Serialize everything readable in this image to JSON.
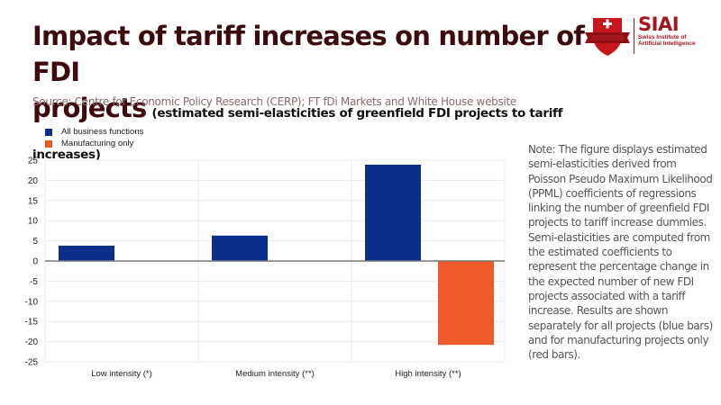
{
  "header": {
    "title": "Impact of tariff increases on number of FDI projects",
    "title_line1": "Impact of tariff increases on number of FDI",
    "title_line2": "projects",
    "subtitle": "(estimated semi-elasticities of greenfield FDI projects to tariff increases)",
    "source": "Source: Centre for Economic Policy Research (CERP); FT fDi Markets and White House website"
  },
  "logo": {
    "name": "SIAI",
    "line1": "Swiss Institute of",
    "line2": "Artificial Intelligence",
    "color": "#a3161c"
  },
  "note": "Note: The figure displays estimated semi-elasticities derived from Poisson Pseudo Maximum Likelihood (PPML) coefficients of regressions linking the number of greenfield FDI projects to tariff increase dummies. Semi-elasticities are computed from the estimated coefficients to represent the percentage change in the expected number of new FDI projects associated with a tariff increase. Results are shown separately for all projects (blue bars) and for manufacturing projects only (red bars).",
  "chart_data": {
    "type": "bar",
    "title": "Impact of tariff increases on number of FDI projects",
    "subtitle": "(estimated semi-elasticities of greenfield FDI projects to tariff increases)",
    "xlabel": "",
    "ylabel": "",
    "categories": [
      "Low intensity (*)",
      "Medium intensity (**)",
      "High intensity (**)"
    ],
    "series": [
      {
        "name": "All business functions",
        "color": "#0d2f8c",
        "values": [
          3.8,
          6.3,
          23.9
        ]
      },
      {
        "name": "Manufacturing only",
        "color": "#ee5a2a",
        "values": [
          null,
          null,
          -20.8
        ]
      }
    ],
    "ylim": [
      -25,
      25
    ],
    "yticks": [
      25,
      20,
      15,
      10,
      5,
      0,
      -5,
      -10,
      -15,
      -20,
      -25
    ],
    "grid": true,
    "legend_position": "top-left"
  }
}
